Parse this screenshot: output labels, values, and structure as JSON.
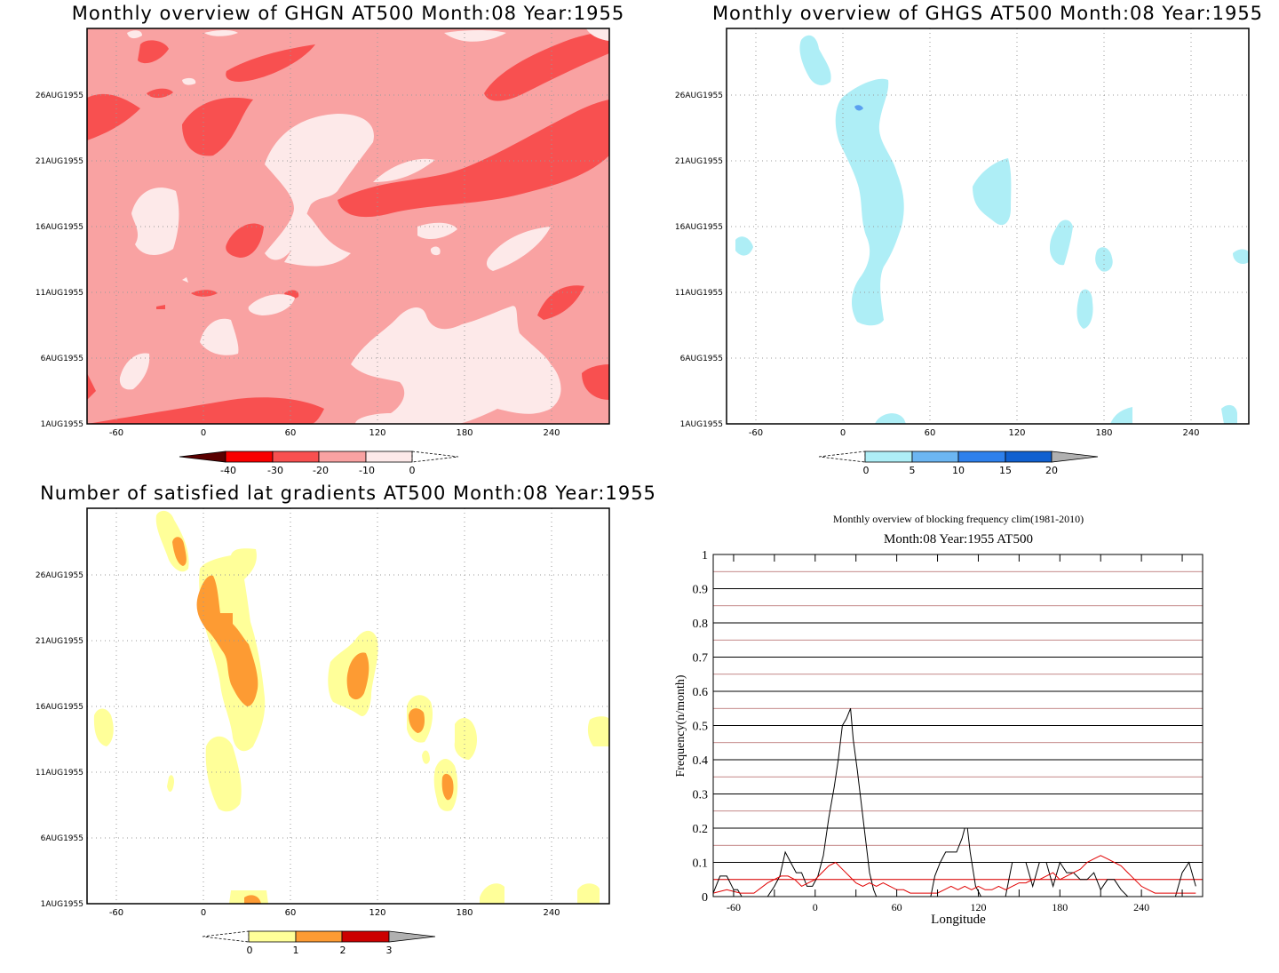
{
  "panels": {
    "ghgn": {
      "title": "Monthly overview of GHGN AT500 Month:08 Year:1955",
      "colors": {
        "bg": "#f9a2a2",
        "strong": "#f85050",
        "light": "#fde9e9"
      }
    },
    "ghgs": {
      "title": "Monthly overview of GHGS AT500 Month:08 Year:1955",
      "colors": {
        "blob": "#aeeef6",
        "core": "#5aa0f0"
      }
    },
    "grad": {
      "title": "Number of satisfied lat gradients AT500 Month:08 Year:1955",
      "colors": {
        "one": "#ffff99",
        "two": "#fd9b33"
      }
    },
    "freq": {
      "title": "Monthly overview of blocking frequency clim(1981-2010)",
      "subtitle": "Month:08 Year:1955  AT500"
    }
  },
  "time_axis_labels": [
    "1AUG1955",
    "6AUG1955",
    "11AUG1955",
    "16AUG1955",
    "21AUG1955",
    "26AUG1955"
  ],
  "lon_axis_labels": [
    "-60",
    "0",
    "60",
    "120",
    "180",
    "240"
  ],
  "colorbars": {
    "ghgn": {
      "labels": [
        "-40",
        "-30",
        "-20",
        "-10",
        "0"
      ],
      "colors": [
        "#5a0000",
        "#f80000",
        "#f85050",
        "#f9a2a2",
        "#fde9e9"
      ]
    },
    "ghgs": {
      "labels": [
        "0",
        "5",
        "10",
        "15",
        "20"
      ],
      "colors": [
        "#aeeef6",
        "#6cb6f2",
        "#2e80ec",
        "#1060d0",
        "#b0b0b0"
      ]
    },
    "grad": {
      "labels": [
        "0",
        "1",
        "2",
        "3"
      ],
      "colors": [
        "#ffff99",
        "#fd9b33",
        "#cc0000",
        "#b0b0b0"
      ]
    }
  },
  "chart_data": {
    "type": "line",
    "title": "Monthly overview of blocking frequency clim(1981-2010)",
    "subtitle": "Month:08 Year:1955  AT500",
    "xlabel": "Longitude",
    "ylabel": "Frequency(n/month)",
    "xlim": [
      -75,
      285
    ],
    "ylim": [
      0,
      1
    ],
    "x_ticks": [
      "-60",
      "0",
      "60",
      "120",
      "180",
      "240"
    ],
    "y_ticks": [
      "0",
      "0.1",
      "0.2",
      "0.3",
      "0.4",
      "0.5",
      "0.6",
      "0.7",
      "0.8",
      "0.9",
      "1"
    ],
    "grid": true,
    "series": [
      {
        "color": "#000000",
        "x": [
          -75,
          -70,
          -65,
          -60,
          -57,
          -54,
          -50,
          -45,
          -40,
          -35,
          -30,
          -26,
          -22,
          -18,
          -14,
          -10,
          -6,
          -2,
          2,
          6,
          10,
          14,
          17,
          20,
          23,
          26,
          28,
          31,
          34,
          37,
          40,
          43,
          45,
          50,
          55,
          60,
          65,
          70,
          75,
          80,
          85,
          88,
          92,
          96,
          100,
          104,
          108,
          110,
          112,
          114,
          118,
          122,
          126,
          130,
          135,
          140,
          145,
          150,
          155,
          160,
          165,
          170,
          175,
          180,
          185,
          190,
          195,
          200,
          205,
          210,
          215,
          220,
          225,
          230,
          235,
          240,
          245,
          250,
          255,
          260,
          265,
          270,
          275,
          280
        ],
        "y": [
          0.01,
          0.06,
          0.06,
          0.02,
          0.02,
          0,
          0,
          0,
          0,
          0,
          0.03,
          0.06,
          0.13,
          0.1,
          0.07,
          0.07,
          0.03,
          0.03,
          0.06,
          0.12,
          0.23,
          0.32,
          0.4,
          0.5,
          0.52,
          0.55,
          0.46,
          0.37,
          0.27,
          0.17,
          0.07,
          0.02,
          0,
          0,
          0,
          0,
          0,
          0,
          0,
          0,
          0,
          0.06,
          0.1,
          0.13,
          0.13,
          0.13,
          0.17,
          0.2,
          0.2,
          0.13,
          0.03,
          0,
          0,
          0,
          0,
          0,
          0.1,
          0.1,
          0.1,
          0.03,
          0.1,
          0.1,
          0.03,
          0.1,
          0.07,
          0.07,
          0.05,
          0.05,
          0.07,
          0.02,
          0.05,
          0.05,
          0.02,
          0,
          0,
          0,
          0,
          0,
          0,
          0,
          0,
          0.07,
          0.1,
          0.03
        ]
      },
      {
        "color": "#e00000",
        "x": [
          -75,
          -65,
          -55,
          -45,
          -35,
          -25,
          -20,
          -15,
          -10,
          -5,
          0,
          5,
          10,
          15,
          20,
          25,
          30,
          35,
          40,
          45,
          50,
          55,
          60,
          65,
          70,
          75,
          80,
          85,
          90,
          95,
          100,
          105,
          110,
          115,
          120,
          125,
          130,
          135,
          140,
          145,
          150,
          155,
          160,
          165,
          170,
          175,
          180,
          185,
          190,
          195,
          200,
          205,
          210,
          215,
          220,
          225,
          230,
          235,
          240,
          245,
          250,
          255,
          260,
          265,
          270,
          275,
          280
        ],
        "y": [
          0.01,
          0.02,
          0.01,
          0.01,
          0.04,
          0.06,
          0.06,
          0.05,
          0.03,
          0.04,
          0.05,
          0.07,
          0.09,
          0.1,
          0.08,
          0.06,
          0.04,
          0.03,
          0.04,
          0.03,
          0.04,
          0.03,
          0.02,
          0.02,
          0.01,
          0.01,
          0.01,
          0.01,
          0.01,
          0.02,
          0.03,
          0.02,
          0.03,
          0.02,
          0.03,
          0.02,
          0.02,
          0.03,
          0.02,
          0.03,
          0.04,
          0.04,
          0.05,
          0.05,
          0.06,
          0.07,
          0.05,
          0.06,
          0.07,
          0.08,
          0.1,
          0.11,
          0.12,
          0.11,
          0.1,
          0.09,
          0.07,
          0.05,
          0.03,
          0.02,
          0.01,
          0.01,
          0.01,
          0.01,
          0.01,
          0.01,
          0.01
        ]
      }
    ],
    "reference_lines": [
      {
        "color": "#e00000",
        "y": 0.05
      }
    ]
  }
}
